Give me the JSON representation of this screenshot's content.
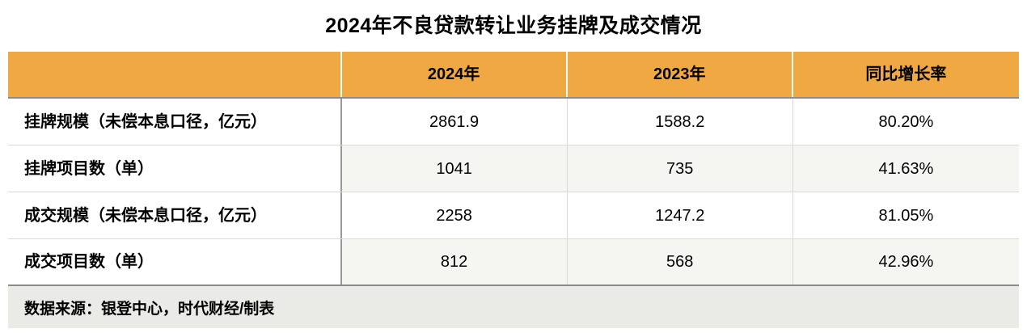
{
  "title": "2024年不良贷款转让业务挂牌及成交情况",
  "table": {
    "columns": [
      "",
      "2024年",
      "2023年",
      "同比增长率"
    ],
    "rows": [
      {
        "label": "挂牌规模（未偿本息口径，亿元）",
        "y2024": "2861.9",
        "y2023": "1588.2",
        "yoy": "80.20%"
      },
      {
        "label": "挂牌项目数（单）",
        "y2024": "1041",
        "y2023": "735",
        "yoy": "41.63%"
      },
      {
        "label": "成交规模（未偿本息口径，亿元）",
        "y2024": "2258",
        "y2023": "1247.2",
        "yoy": "81.05%"
      },
      {
        "label": "成交项目数（单）",
        "y2024": "812",
        "y2023": "568",
        "yoy": "42.96%"
      }
    ],
    "footer": "数据来源：银登中心，时代财经/制表"
  },
  "colors": {
    "header_bg": "#F0A942",
    "stripe_bg": "#F5F5F2",
    "footer_bg": "#EAEAE7",
    "dark_border": "#8B8B8B",
    "light_border": "#D9D9D9"
  },
  "chart_data": {
    "type": "table",
    "title": "2024年不良贷款转让业务挂牌及成交情况",
    "columns": [
      "",
      "2024年",
      "2023年",
      "同比增长率"
    ],
    "rows": [
      [
        "挂牌规模（未偿本息口径，亿元）",
        2861.9,
        1588.2,
        "80.20%"
      ],
      [
        "挂牌项目数（单）",
        1041,
        735,
        "41.63%"
      ],
      [
        "成交规模（未偿本息口径，亿元）",
        2258,
        1247.2,
        "81.05%"
      ],
      [
        "成交项目数（单）",
        812,
        568,
        "42.96%"
      ]
    ],
    "source_note": "数据来源：银登中心，时代财经/制表",
    "layout": {
      "striped_rows": [
        2,
        4
      ],
      "header_bg": "#F0A942",
      "values_centered": true
    }
  }
}
